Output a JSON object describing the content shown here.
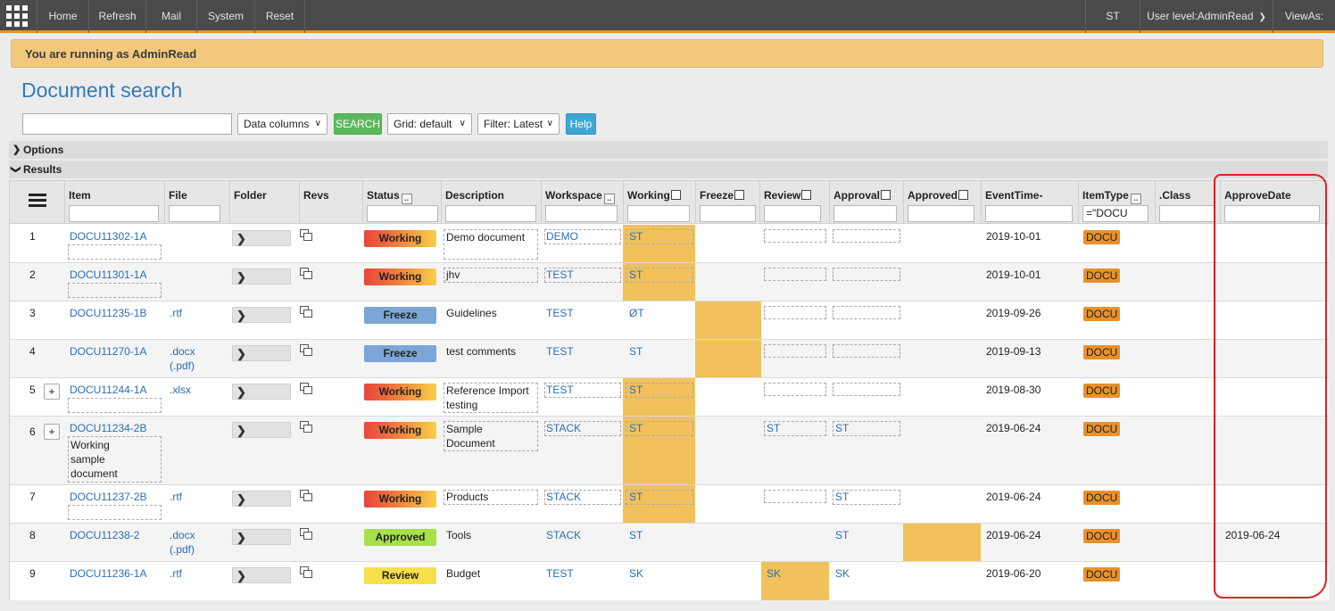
{
  "nav": {
    "items": [
      "Home",
      "Refresh",
      "Mail",
      "System",
      "Reset"
    ],
    "user": "ST",
    "user_level": "User level:AdminRead",
    "views_as": "ViewAs:"
  },
  "banner": {
    "text": "You are running as AdminRead"
  },
  "page": {
    "title": "Document search"
  },
  "search": {
    "value": "",
    "data_columns": "Data columns",
    "search_label": "SEARCH",
    "grid": "Grid: default",
    "filter": "Filter: Latest",
    "help_label": "Help"
  },
  "sections": {
    "options": "Options",
    "results": "Results"
  },
  "grid": {
    "columns": [
      "Item",
      "File",
      "Folder",
      "Revs",
      "Status",
      "Description",
      "Workspace",
      "Working",
      "Freeze",
      "Review",
      "Approval",
      "Approved",
      "EventTime-",
      "ItemType",
      ".Class",
      "ApproveDate"
    ],
    "itemtype_filter": "=\"DOCU",
    "badge": "DOCU",
    "rows": [
      {
        "num": "1",
        "item": "DOCU11302-1A",
        "file": "",
        "status": "Working",
        "description": "Demo document",
        "workspace": "DEMO",
        "working": "ST",
        "review": "",
        "approval": "",
        "event_time": "2019-10-01",
        "approve_date": ""
      },
      {
        "num": "2",
        "item": "DOCU11301-1A",
        "file": "",
        "status": "Working",
        "description": "jhv",
        "workspace": "TEST",
        "working": "ST",
        "review": "",
        "approval": "",
        "event_time": "2019-10-01",
        "approve_date": ""
      },
      {
        "num": "3",
        "item": "DOCU11235-1B",
        "file": ".rtf",
        "status": "Freeze",
        "description": "Guidelines",
        "workspace": "TEST",
        "working": "ØT",
        "review": "",
        "approval": "",
        "event_time": "2019-09-26",
        "approve_date": ""
      },
      {
        "num": "4",
        "item": "DOCU11270-1A",
        "file": ".docx",
        "file2": "(.pdf)",
        "status": "Freeze",
        "description": "test comments",
        "workspace": "TEST",
        "working": "ST",
        "review": "",
        "approval": "",
        "event_time": "2019-09-13",
        "approve_date": ""
      },
      {
        "num": "5",
        "item": "DOCU11244-1A",
        "file": ".xlsx",
        "status": "Working",
        "description": "Reference Import testing",
        "workspace": "TEST",
        "working": "ST",
        "review": "",
        "approval": "",
        "event_time": "2019-08-30",
        "approve_date": ""
      },
      {
        "num": "6",
        "item": "DOCU11234-2B",
        "item_note": "Working sample document",
        "file": "",
        "status": "Working",
        "description": "Sample Document",
        "workspace": "STACK",
        "working": "ST",
        "review": "ST",
        "approval": "ST",
        "event_time": "2019-06-24",
        "approve_date": ""
      },
      {
        "num": "7",
        "item": "DOCU11237-2B",
        "file": ".rtf",
        "status": "Working",
        "description": "Products",
        "workspace": "STACK",
        "working": "ST",
        "review": "",
        "approval": "ST",
        "event_time": "2019-06-24",
        "approve_date": ""
      },
      {
        "num": "8",
        "item": "DOCU11238-2",
        "file": ".docx",
        "file2": "(.pdf)",
        "status": "Approved",
        "description": "Tools",
        "workspace": "STACK",
        "working": "ST",
        "review": "",
        "approval": "ST",
        "event_time": "2019-06-24",
        "approve_date": "2019-06-24"
      },
      {
        "num": "9",
        "item": "DOCU11236-1A",
        "file": ".rtf",
        "status": "Review",
        "description": "Budget",
        "workspace": "TEST",
        "working": "SK",
        "review": "SK",
        "approval": "SK",
        "event_time": "2019-06-20",
        "approve_date": ""
      }
    ]
  }
}
